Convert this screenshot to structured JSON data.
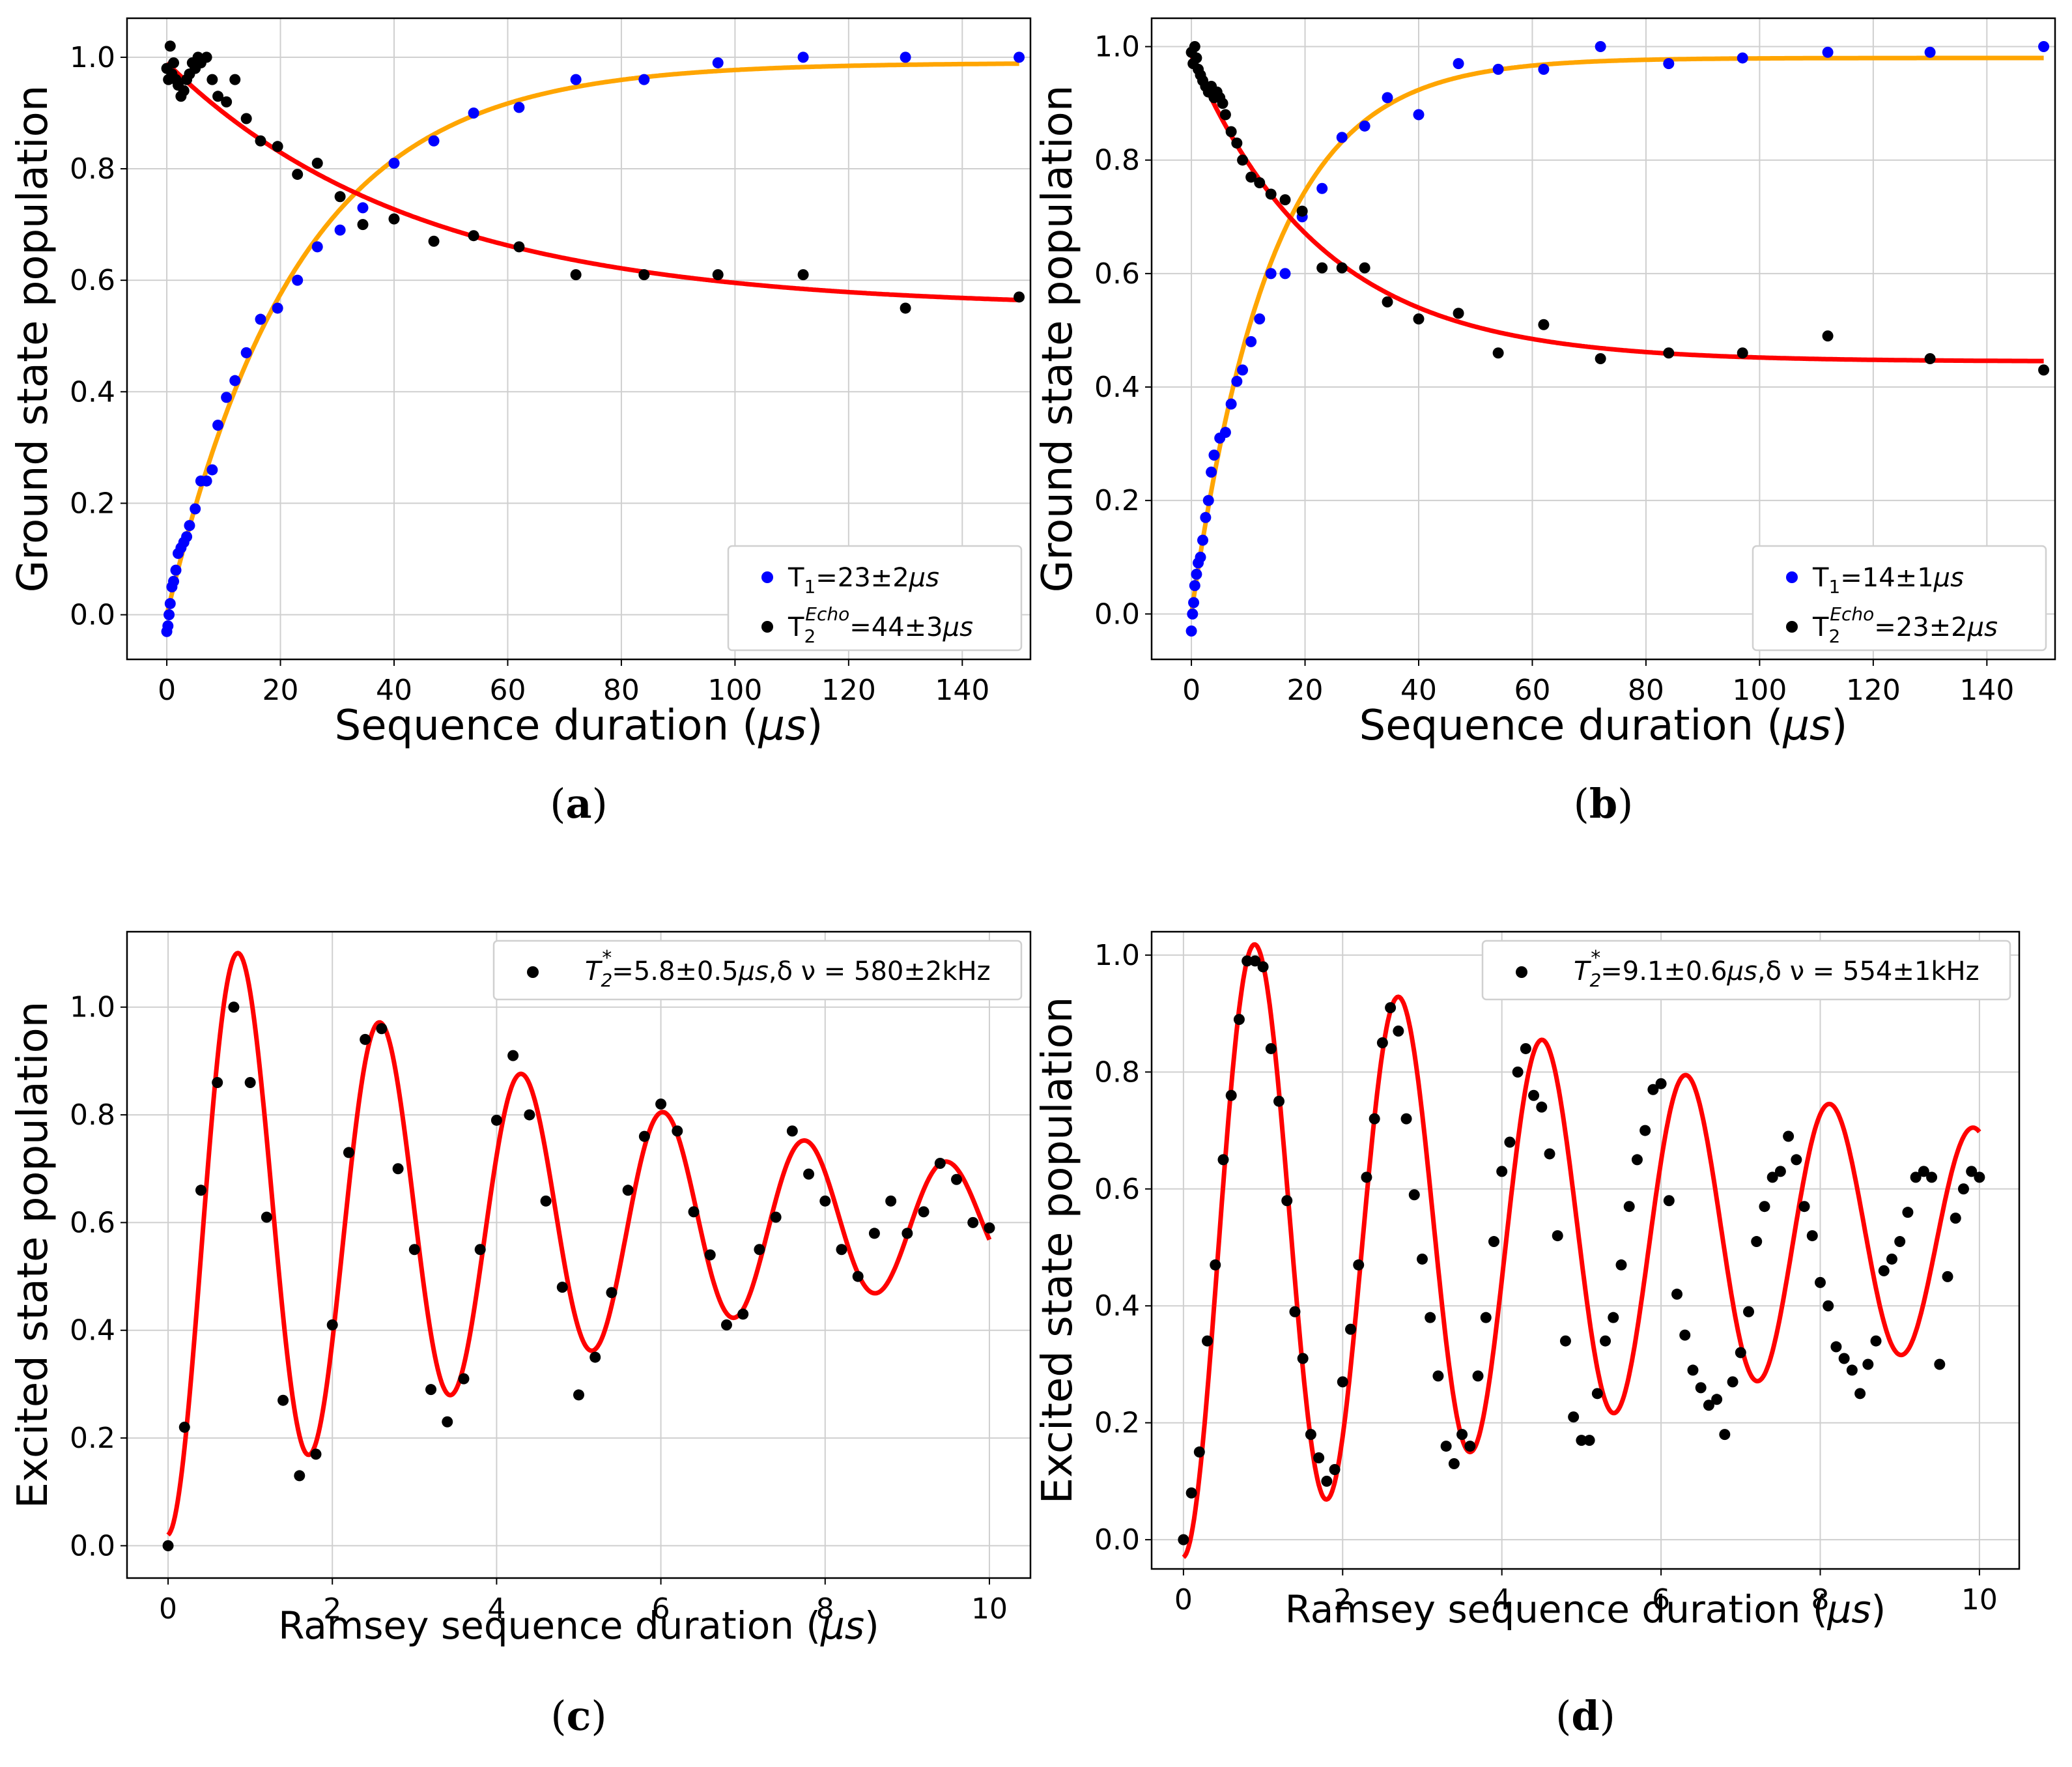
{
  "panels": [
    {
      "caption_label": "a",
      "chart_data": {
        "type": "scatter",
        "xlabel_text": "Sequence duration (",
        "xlabel_unit": "μs",
        "xlabel_close": ")",
        "ylabel": "Ground state population",
        "xlim": [
          -7,
          152
        ],
        "ylim": [
          -0.08,
          1.07
        ],
        "xticks": [
          0,
          20,
          40,
          60,
          80,
          100,
          120,
          140
        ],
        "yticks": [
          0.0,
          0.2,
          0.4,
          0.6,
          0.8,
          1.0
        ],
        "legend_position": "bottom-right",
        "series": [
          {
            "name": "T1",
            "legend_main": "T",
            "legend_sub": "1",
            "legend_sup": "",
            "legend_value": "=23±2",
            "legend_unit": "μs",
            "marker_color": "#0000ff",
            "x": [
              0,
              0.2,
              0.4,
              0.6,
              0.9,
              1.2,
              1.6,
              2,
              2.5,
              3,
              3.5,
              4,
              5,
              6,
              7,
              8,
              9,
              10.5,
              12,
              14,
              16.5,
              19.5,
              23,
              26.5,
              30.5,
              34.5,
              40,
              47,
              54,
              62,
              72,
              84,
              97,
              112,
              130,
              150
            ],
            "y": [
              -0.03,
              -0.02,
              0.0,
              0.02,
              0.05,
              0.06,
              0.08,
              0.11,
              0.12,
              0.13,
              0.14,
              0.16,
              0.19,
              0.24,
              0.24,
              0.26,
              0.34,
              0.39,
              0.42,
              0.47,
              0.53,
              0.55,
              0.6,
              0.66,
              0.69,
              0.73,
              0.81,
              0.85,
              0.9,
              0.91,
              0.96,
              0.96,
              0.99,
              1.0,
              1.0,
              1.0
            ]
          },
          {
            "name": "T2 Echo",
            "legend_main": "T",
            "legend_sub": "2",
            "legend_sup": "Echo",
            "legend_value": "=44±3",
            "legend_unit": "μs",
            "marker_color": "#000000",
            "x": [
              0,
              0.3,
              0.6,
              0.9,
              1.2,
              1.6,
              2,
              2.5,
              3,
              3.5,
              4,
              4.5,
              5,
              5.5,
              6,
              7,
              8,
              9,
              10.5,
              12,
              14,
              16.5,
              19.5,
              23,
              26.5,
              30.5,
              34.5,
              40,
              47,
              54,
              62,
              72,
              84,
              97,
              112,
              130,
              150
            ],
            "y": [
              0.98,
              0.96,
              1.02,
              0.97,
              0.99,
              0.96,
              0.95,
              0.93,
              0.94,
              0.96,
              0.97,
              0.99,
              0.98,
              1.0,
              0.99,
              1.0,
              0.96,
              0.93,
              0.92,
              0.96,
              0.89,
              0.85,
              0.84,
              0.79,
              0.81,
              0.75,
              0.7,
              0.71,
              0.67,
              0.68,
              0.66,
              0.61,
              0.61,
              0.61,
              0.61,
              0.55,
              0.57
            ]
          }
        ],
        "fits": [
          {
            "name": "T1 fit",
            "color": "#ffa500",
            "model": "rise",
            "a": 0.0,
            "b": 0.99,
            "tau": 23
          },
          {
            "name": "T2 echo fit",
            "color": "#ff0000",
            "model": "decay",
            "a": 0.55,
            "b": 0.44,
            "tau": 44
          }
        ]
      }
    },
    {
      "caption_label": "b",
      "chart_data": {
        "type": "scatter",
        "xlabel_text": "Sequence duration (",
        "xlabel_unit": "μs",
        "xlabel_close": ")",
        "ylabel": "Ground state population",
        "xlim": [
          -7,
          152
        ],
        "ylim": [
          -0.08,
          1.05
        ],
        "xticks": [
          0,
          20,
          40,
          60,
          80,
          100,
          120,
          140
        ],
        "yticks": [
          0.0,
          0.2,
          0.4,
          0.6,
          0.8,
          1.0
        ],
        "legend_position": "bottom-right",
        "series": [
          {
            "name": "T1",
            "legend_main": "T",
            "legend_sub": "1",
            "legend_sup": "",
            "legend_value": "=14±1",
            "legend_unit": "μs",
            "marker_color": "#0000ff",
            "x": [
              0,
              0.2,
              0.4,
              0.6,
              0.9,
              1.2,
              1.6,
              2,
              2.5,
              3,
              3.5,
              4,
              5,
              6,
              7,
              8,
              9,
              10.5,
              12,
              14,
              16.5,
              19.5,
              23,
              26.5,
              30.5,
              34.5,
              40,
              47,
              54,
              62,
              72,
              84,
              97,
              112,
              130,
              150
            ],
            "y": [
              -0.03,
              0.0,
              0.02,
              0.05,
              0.07,
              0.09,
              0.1,
              0.13,
              0.17,
              0.2,
              0.25,
              0.28,
              0.31,
              0.32,
              0.37,
              0.41,
              0.43,
              0.48,
              0.52,
              0.6,
              0.6,
              0.7,
              0.75,
              0.84,
              0.86,
              0.91,
              0.88,
              0.97,
              0.96,
              0.96,
              1.0,
              0.97,
              0.98,
              0.99,
              0.99,
              1.0
            ]
          },
          {
            "name": "T2 Echo",
            "legend_main": "T",
            "legend_sub": "2",
            "legend_sup": "Echo",
            "legend_value": "=23±2",
            "legend_unit": "μs",
            "marker_color": "#000000",
            "x": [
              0,
              0.3,
              0.6,
              0.9,
              1.2,
              1.6,
              2,
              2.5,
              3,
              3.5,
              4,
              4.5,
              5,
              5.5,
              6,
              7,
              8,
              9,
              10.5,
              12,
              14,
              16.5,
              19.5,
              23,
              26.5,
              30.5,
              34.5,
              40,
              47,
              54,
              62,
              72,
              84,
              97,
              112,
              130,
              150
            ],
            "y": [
              0.99,
              0.97,
              1.0,
              0.98,
              0.96,
              0.95,
              0.94,
              0.93,
              0.92,
              0.93,
              0.91,
              0.92,
              0.91,
              0.9,
              0.88,
              0.85,
              0.83,
              0.8,
              0.77,
              0.76,
              0.74,
              0.73,
              0.71,
              0.61,
              0.61,
              0.61,
              0.55,
              0.52,
              0.53,
              0.46,
              0.51,
              0.45,
              0.46,
              0.46,
              0.49,
              0.45,
              0.43
            ]
          }
        ],
        "fits": [
          {
            "name": "T1 fit",
            "color": "#ffa500",
            "model": "rise",
            "a": 0.0,
            "b": 0.98,
            "tau": 14
          },
          {
            "name": "T2 echo fit",
            "color": "#ff0000",
            "model": "decay",
            "a": 0.445,
            "b": 0.54,
            "tau": 23
          }
        ]
      }
    },
    {
      "caption_label": "c",
      "chart_data": {
        "type": "scatter",
        "xlabel_text": "Ramsey sequence duration (",
        "xlabel_unit": "μs",
        "xlabel_close": ")",
        "ylabel": "Excited  state population",
        "xlim": [
          -0.5,
          10.5
        ],
        "ylim": [
          -0.06,
          1.14
        ],
        "xticks": [
          0,
          2,
          4,
          6,
          8,
          10
        ],
        "yticks": [
          0.0,
          0.2,
          0.4,
          0.6,
          0.8,
          1.0
        ],
        "legend_position": "top-right",
        "series": [
          {
            "name": "Ramsey",
            "legend_main": "T",
            "legend_sub": "2",
            "legend_sup": "*",
            "legend_value": "=5.8±0.5",
            "legend_unit": "μs",
            "legend_tail": ",δ ν = 580±2kHz",
            "marker_color": "#000000",
            "x": [
              0,
              0.2,
              0.4,
              0.6,
              0.8,
              1.0,
              1.2,
              1.4,
              1.6,
              1.8,
              2.0,
              2.2,
              2.4,
              2.6,
              2.8,
              3.0,
              3.2,
              3.4,
              3.6,
              3.8,
              4.0,
              4.2,
              4.4,
              4.6,
              4.8,
              5.0,
              5.2,
              5.4,
              5.6,
              5.8,
              6.0,
              6.2,
              6.4,
              6.6,
              6.8,
              7.0,
              7.2,
              7.4,
              7.6,
              7.8,
              8.0,
              8.2,
              8.4,
              8.6,
              8.8,
              9.0,
              9.2,
              9.4,
              9.6,
              9.8,
              10.0
            ],
            "y": [
              0.0,
              0.22,
              0.66,
              0.86,
              1.0,
              0.86,
              0.61,
              0.27,
              0.13,
              0.17,
              0.41,
              0.73,
              0.94,
              0.96,
              0.7,
              0.55,
              0.29,
              0.23,
              0.31,
              0.55,
              0.79,
              0.91,
              0.8,
              0.64,
              0.48,
              0.28,
              0.35,
              0.47,
              0.66,
              0.76,
              0.82,
              0.77,
              0.62,
              0.54,
              0.41,
              0.43,
              0.55,
              0.61,
              0.77,
              0.69,
              0.64,
              0.55,
              0.5,
              0.58,
              0.64,
              0.58,
              0.62,
              0.71,
              0.68,
              0.6,
              0.59
            ]
          }
        ],
        "fits": [
          {
            "name": "Ramsey fit",
            "color": "#ff0000",
            "model": "ramsey",
            "offset": 0.6,
            "amp": -0.58,
            "tau": 5.8,
            "freq": 0.58
          }
        ]
      }
    },
    {
      "caption_label": "d",
      "chart_data": {
        "type": "scatter",
        "xlabel_text": "Ramsey sequence duration (",
        "xlabel_unit": "μs",
        "xlabel_close": ")",
        "ylabel": "Excited  state population",
        "xlim": [
          -0.4,
          10.5
        ],
        "ylim": [
          -0.05,
          1.04
        ],
        "xticks": [
          0,
          2,
          4,
          6,
          8,
          10
        ],
        "yticks": [
          0.0,
          0.2,
          0.4,
          0.6,
          0.8,
          1.0
        ],
        "legend_position": "top-right",
        "series": [
          {
            "name": "Ramsey",
            "legend_main": "T",
            "legend_sub": "2",
            "legend_sup": "*",
            "legend_value": "=9.1±0.6",
            "legend_unit": "μs",
            "legend_tail": ",δ ν = 554±1kHz",
            "marker_color": "#000000",
            "x": [
              0,
              0.1,
              0.2,
              0.3,
              0.4,
              0.5,
              0.6,
              0.7,
              0.8,
              0.9,
              1.0,
              1.1,
              1.2,
              1.3,
              1.4,
              1.5,
              1.6,
              1.7,
              1.8,
              1.9,
              2.0,
              2.1,
              2.2,
              2.3,
              2.4,
              2.5,
              2.6,
              2.7,
              2.8,
              2.9,
              3.0,
              3.1,
              3.2,
              3.3,
              3.4,
              3.5,
              3.6,
              3.7,
              3.8,
              3.9,
              4.0,
              4.1,
              4.2,
              4.3,
              4.4,
              4.5,
              4.6,
              4.7,
              4.8,
              4.9,
              5.0,
              5.1,
              5.2,
              5.3,
              5.4,
              5.5,
              5.6,
              5.7,
              5.8,
              5.9,
              6.0,
              6.1,
              6.2,
              6.3,
              6.4,
              6.5,
              6.6,
              6.7,
              6.8,
              6.9,
              7.0,
              7.1,
              7.2,
              7.3,
              7.4,
              7.5,
              7.6,
              7.7,
              7.8,
              7.9,
              8.0,
              8.1,
              8.2,
              8.3,
              8.4,
              8.5,
              8.6,
              8.7,
              8.8,
              8.9,
              9.0,
              9.1,
              9.2,
              9.3,
              9.4,
              9.5,
              9.6,
              9.7,
              9.8,
              9.9,
              10.0
            ],
            "y": [
              0.0,
              0.08,
              0.15,
              0.34,
              0.47,
              0.65,
              0.76,
              0.89,
              0.99,
              0.99,
              0.98,
              0.84,
              0.75,
              0.58,
              0.39,
              0.31,
              0.18,
              0.14,
              0.1,
              0.12,
              0.27,
              0.36,
              0.47,
              0.62,
              0.72,
              0.85,
              0.91,
              0.87,
              0.72,
              0.59,
              0.48,
              0.38,
              0.28,
              0.16,
              0.13,
              0.18,
              0.16,
              0.28,
              0.38,
              0.51,
              0.63,
              0.68,
              0.8,
              0.84,
              0.76,
              0.74,
              0.66,
              0.52,
              0.34,
              0.21,
              0.17,
              0.17,
              0.25,
              0.34,
              0.38,
              0.47,
              0.57,
              0.65,
              0.7,
              0.77,
              0.78,
              0.58,
              0.42,
              0.35,
              0.29,
              0.26,
              0.23,
              0.24,
              0.18,
              0.27,
              0.32,
              0.39,
              0.51,
              0.57,
              0.62,
              0.63,
              0.69,
              0.65,
              0.57,
              0.52,
              0.44,
              0.4,
              0.33,
              0.31,
              0.29,
              0.25,
              0.3,
              0.34,
              0.46,
              0.48,
              0.51,
              0.56,
              0.62,
              0.63,
              0.62,
              0.3,
              0.45,
              0.55,
              0.6,
              0.63,
              0.62
            ]
          }
        ],
        "fits": [
          {
            "name": "Ramsey fit",
            "color": "#ff0000",
            "model": "ramsey",
            "offset": 0.52,
            "amp": -0.55,
            "tau": 9.1,
            "freq": 0.554
          }
        ]
      }
    }
  ]
}
